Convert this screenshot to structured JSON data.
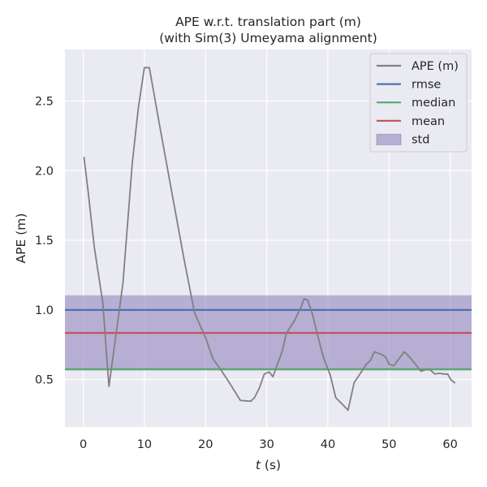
{
  "chart_data": {
    "type": "line",
    "title": "APE w.r.t. translation part (m)",
    "subtitle": "(with Sim(3) Umeyama alignment)",
    "xlabel_italic": "t",
    "xlabel_rest": " (s)",
    "ylabel": "APE (m)",
    "xlim": [
      -3,
      63.5
    ],
    "ylim": [
      0.16,
      2.87
    ],
    "xticks": [
      0,
      10,
      20,
      30,
      40,
      50,
      60
    ],
    "xtick_labels": [
      "0",
      "10",
      "20",
      "30",
      "40",
      "50",
      "60"
    ],
    "yticks": [
      0.5,
      1.0,
      1.5,
      2.0,
      2.5
    ],
    "ytick_labels": [
      "0.5",
      "1.0",
      "1.5",
      "2.0",
      "2.5"
    ],
    "grid": true,
    "legend_position": "top-right",
    "legend": [
      {
        "label": "APE (m)",
        "color": "#808080",
        "kind": "line"
      },
      {
        "label": "rmse",
        "color": "#4c72b0",
        "kind": "line"
      },
      {
        "label": "median",
        "color": "#55a868",
        "kind": "line"
      },
      {
        "label": "mean",
        "color": "#c44e52",
        "kind": "line"
      },
      {
        "label": "std",
        "color": "#8172b3",
        "kind": "patch"
      }
    ],
    "colors": {
      "background": "#eaeaf2",
      "grid": "#ffffff",
      "ape": "#808080",
      "rmse": "#4c72b0",
      "median": "#55a868",
      "mean": "#c44e52",
      "std": "#8172b3"
    },
    "stats": {
      "rmse": 1.0,
      "median": 0.575,
      "mean": 0.835,
      "std_band": [
        0.565,
        1.105
      ]
    },
    "series": [
      {
        "name": "APE (m)",
        "x": [
          0.1,
          0.8,
          1.8,
          3.2,
          4.2,
          5.5,
          6.5,
          8.0,
          9.0,
          10.0,
          10.8,
          12.5,
          14.5,
          16.5,
          18.2,
          20.0,
          21.2,
          22.5,
          24.0,
          25.7,
          27.4,
          28.0,
          28.8,
          29.6,
          30.4,
          31.0,
          32.5,
          33.2,
          34.5,
          35.6,
          36.1,
          36.7,
          37.4,
          38.2,
          39.2,
          40.4,
          41.3,
          42.2,
          43.3,
          44.3,
          45.4,
          46.3,
          47.0,
          47.6,
          48.8,
          49.5,
          50.0,
          50.8,
          51.8,
          52.5,
          53.2,
          54.5,
          55.2,
          55.9,
          56.7,
          57.5,
          58.2,
          59.0,
          59.6,
          60.1,
          60.8
        ],
        "y": [
          2.1,
          1.85,
          1.45,
          1.05,
          0.45,
          0.87,
          1.2,
          2.05,
          2.45,
          2.74,
          2.74,
          2.32,
          1.84,
          1.36,
          0.98,
          0.8,
          0.65,
          0.57,
          0.47,
          0.35,
          0.345,
          0.37,
          0.44,
          0.54,
          0.555,
          0.52,
          0.7,
          0.83,
          0.92,
          1.02,
          1.08,
          1.07,
          0.98,
          0.84,
          0.67,
          0.53,
          0.37,
          0.33,
          0.28,
          0.48,
          0.55,
          0.61,
          0.64,
          0.7,
          0.68,
          0.66,
          0.61,
          0.6,
          0.66,
          0.7,
          0.67,
          0.6,
          0.56,
          0.57,
          0.57,
          0.54,
          0.545,
          0.54,
          0.54,
          0.5,
          0.475
        ]
      }
    ]
  }
}
